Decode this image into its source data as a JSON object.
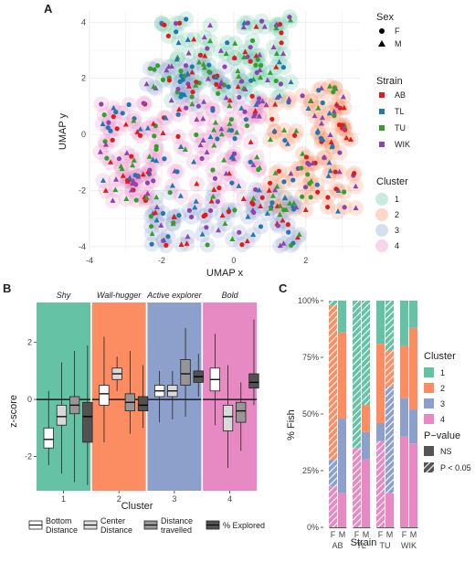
{
  "panels": {
    "a": "A",
    "b": "B",
    "c": "C"
  },
  "colors": {
    "strain": {
      "AB": "#e31a1c",
      "TL": "#1f78b4",
      "TU": "#33a02c",
      "WIK": "#8e44ad"
    },
    "cluster": {
      "1": "#66c2a5",
      "2": "#fc8d62",
      "3": "#8da0cb",
      "4": "#e78ac3"
    },
    "box_fill": {
      "Bottom Distance": "#ffffff",
      "Center Distance": "#d9d9d9",
      "Distance travelled": "#969696",
      "% Explored": "#525252"
    }
  },
  "chart_data": [
    {
      "type": "scatter",
      "xlabel": "UMAP x",
      "ylabel": "UMAP y",
      "xlim": [
        -4,
        3.5
      ],
      "ylim": [
        -4.2,
        4.4
      ],
      "xticks": [
        "-4",
        "-2",
        "0",
        "2"
      ],
      "yticks": [
        "-4",
        "-2",
        "0",
        "2",
        "4"
      ],
      "grid": true,
      "legends": [
        {
          "title": "Sex",
          "entries": [
            "F",
            "M"
          ],
          "shapes": [
            "circle",
            "triangle"
          ]
        },
        {
          "title": "Strain",
          "entries": [
            "AB",
            "TL",
            "TU",
            "WIK"
          ]
        },
        {
          "title": "Cluster",
          "entries": [
            "1",
            "2",
            "3",
            "4"
          ]
        }
      ],
      "cluster_regions": [
        {
          "cluster": "1",
          "x_range": [
            -2.0,
            1.6
          ],
          "y_range": [
            1.2,
            4.2
          ]
        },
        {
          "cluster": "2",
          "x_range": [
            0.9,
            3.4
          ],
          "y_range": [
            -2.8,
            1.8
          ]
        },
        {
          "cluster": "3",
          "x_range": [
            -2.3,
            1.9
          ],
          "y_range": [
            -4.0,
            -1.9
          ]
        },
        {
          "cluster": "3b",
          "x_range": [
            -2.5,
            0.2
          ],
          "y_range": [
            1.0,
            2.6
          ]
        },
        {
          "cluster": "4",
          "x_range": [
            -3.7,
            0.8
          ],
          "y_range": [
            -2.4,
            1.2
          ]
        }
      ]
    },
    {
      "type": "boxplot",
      "xlabel": "Cluster",
      "ylabel": "z-score",
      "ylim": [
        -3.2,
        3.4
      ],
      "yticks": [
        "-2",
        "0",
        "2"
      ],
      "categories": [
        "1",
        "2",
        "3",
        "4"
      ],
      "strip_labels": [
        "Shy",
        "Wall-hugger",
        "Active explorer",
        "Bold"
      ],
      "series_names": [
        "Bottom Distance",
        "Center Distance",
        "Distance travelled",
        "% Explored"
      ],
      "boxes": [
        [
          {
            "min": -2.3,
            "q1": -1.7,
            "median": -1.4,
            "q3": -1.0,
            "max": 0.3
          },
          {
            "min": -2.6,
            "q1": -0.9,
            "median": -0.6,
            "q3": -0.2,
            "max": 1.3
          },
          {
            "min": -2.9,
            "q1": -0.5,
            "median": -0.2,
            "q3": 0.1,
            "max": 1.7
          },
          {
            "min": -3.0,
            "q1": -1.5,
            "median": -0.6,
            "q3": -0.1,
            "max": 1.9
          }
        ],
        [
          {
            "min": -1.5,
            "q1": -0.2,
            "median": 0.2,
            "q3": 0.5,
            "max": 2.2
          },
          {
            "min": 0.3,
            "q1": 0.7,
            "median": 0.9,
            "q3": 1.1,
            "max": 1.5
          },
          {
            "min": -1.2,
            "q1": -0.4,
            "median": -0.1,
            "q3": 0.2,
            "max": 1.7
          },
          {
            "min": -1.0,
            "q1": -0.4,
            "median": -0.2,
            "q3": 0.1,
            "max": 1.2
          }
        ],
        [
          {
            "min": -0.8,
            "q1": 0.1,
            "median": 0.3,
            "q3": 0.5,
            "max": 1.0
          },
          {
            "min": -0.7,
            "q1": 0.1,
            "median": 0.3,
            "q3": 0.5,
            "max": 1.0
          },
          {
            "min": -0.6,
            "q1": 0.5,
            "median": 0.9,
            "q3": 1.4,
            "max": 2.5
          },
          {
            "min": 0.1,
            "q1": 0.6,
            "median": 0.8,
            "q3": 1.0,
            "max": 1.6
          }
        ],
        [
          {
            "min": -0.9,
            "q1": 0.3,
            "median": 0.7,
            "q3": 1.1,
            "max": 2.3
          },
          {
            "min": -2.4,
            "q1": -1.1,
            "median": -0.6,
            "q3": -0.2,
            "max": 1.2
          },
          {
            "min": -1.8,
            "q1": -0.8,
            "median": -0.4,
            "q3": -0.1,
            "max": 0.6
          },
          {
            "min": -0.2,
            "q1": 0.4,
            "median": 0.6,
            "q3": 0.9,
            "max": 2.8
          }
        ]
      ]
    },
    {
      "type": "bar",
      "stacked": true,
      "xlabel": "Strain",
      "ylabel": "% Fish",
      "ylim": [
        0,
        100
      ],
      "yticks": [
        "0%",
        "25%",
        "50%",
        "75%",
        "100%"
      ],
      "strains": [
        "AB",
        "TL",
        "TU",
        "WIK"
      ],
      "sexes": [
        "F",
        "M"
      ],
      "cluster_order_bottom_to_top": [
        "4",
        "3",
        "2",
        "1"
      ],
      "legend_title": "Cluster",
      "legend_entries": [
        "1",
        "2",
        "3",
        "4"
      ],
      "pvalue_legend_title": "P−value",
      "pvalue_entries": [
        "NS",
        "P < 0.05"
      ],
      "bars": [
        {
          "strain": "AB",
          "sex": "F",
          "values": [
            18,
            12,
            68,
            2
          ],
          "hatched": [
            true,
            true,
            true,
            true
          ]
        },
        {
          "strain": "AB",
          "sex": "M",
          "values": [
            15,
            33,
            38,
            14
          ],
          "hatched": [
            false,
            false,
            false,
            false
          ]
        },
        {
          "strain": "TL",
          "sex": "F",
          "values": [
            35,
            0,
            0,
            65
          ],
          "hatched": [
            true,
            true,
            true,
            true
          ]
        },
        {
          "strain": "TL",
          "sex": "M",
          "values": [
            30,
            12,
            12,
            46
          ],
          "hatched": [
            false,
            false,
            false,
            true
          ]
        },
        {
          "strain": "TU",
          "sex": "F",
          "values": [
            38,
            8,
            35,
            19
          ],
          "hatched": [
            true,
            false,
            false,
            false
          ]
        },
        {
          "strain": "TU",
          "sex": "M",
          "values": [
            15,
            47,
            16,
            22
          ],
          "hatched": [
            false,
            true,
            true,
            true
          ]
        },
        {
          "strain": "WIK",
          "sex": "F",
          "values": [
            40,
            17,
            23,
            20
          ],
          "hatched": [
            false,
            false,
            false,
            false
          ]
        },
        {
          "strain": "WIK",
          "sex": "M",
          "values": [
            37,
            15,
            36,
            12
          ],
          "hatched": [
            false,
            false,
            false,
            false
          ]
        }
      ]
    }
  ]
}
